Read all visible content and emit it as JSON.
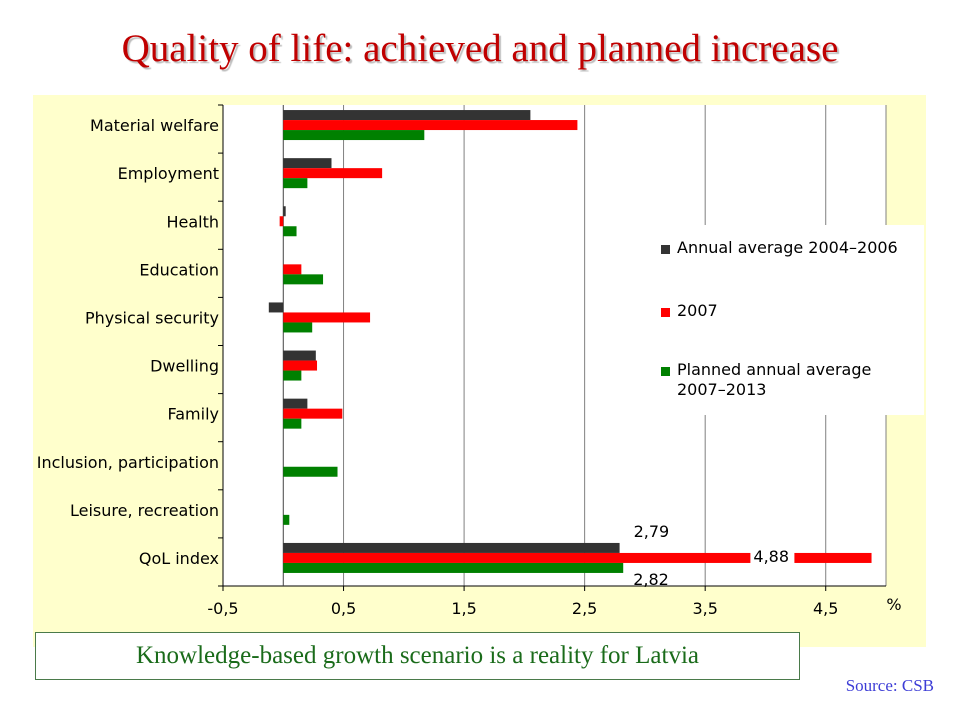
{
  "page": {
    "title": "Quality of life: achieved and planned increase",
    "caption": "Knowledge-based growth scenario is a reality for Latvia",
    "source": "Source: CSB"
  },
  "colors": {
    "title": "#c00000",
    "plot_bg": "#ffffcc",
    "caption_text": "#1a6b1a",
    "source_text": "#3d3dd6"
  },
  "chart_data": {
    "type": "bar",
    "orientation": "horizontal",
    "categories": [
      "Material welfare",
      "Employment",
      "Health",
      "Education",
      "Physical security",
      "Dwelling",
      "Family",
      "Inclusion, participation",
      "Leisure, recreation",
      "QoL index"
    ],
    "series": [
      {
        "name": "Annual average 2004–2006",
        "color": "#333333",
        "values": [
          2.05,
          0.4,
          0.02,
          0.0,
          -0.12,
          0.27,
          0.2,
          0.0,
          0.0,
          2.79
        ]
      },
      {
        "name": "2007",
        "color": "#ff0000",
        "values": [
          2.44,
          0.82,
          -0.03,
          0.15,
          0.72,
          0.28,
          0.49,
          0.0,
          0.0,
          4.88
        ]
      },
      {
        "name": "Planned annual average 2007–2013",
        "color": "#008000",
        "values": [
          1.17,
          0.2,
          0.11,
          0.33,
          0.24,
          0.15,
          0.15,
          0.45,
          0.05,
          2.82
        ]
      }
    ],
    "xlim": [
      -0.5,
      5.0
    ],
    "xticks": [
      "-0,5",
      "0,5",
      "1,5",
      "2,5",
      "3,5",
      "4,5"
    ],
    "xtick_values": [
      -0.5,
      0.5,
      1.5,
      2.5,
      3.5,
      4.5
    ],
    "xlabel": "%",
    "data_labels": [
      {
        "category": "QoL index",
        "series": "Annual average 2004–2006",
        "text": "2,79"
      },
      {
        "category": "QoL index",
        "series": "2007",
        "text": "4,88"
      },
      {
        "category": "QoL index",
        "series": "Planned annual average 2007–2013",
        "text": "2,82"
      }
    ],
    "legend_position": "right",
    "grid": "vertical"
  }
}
